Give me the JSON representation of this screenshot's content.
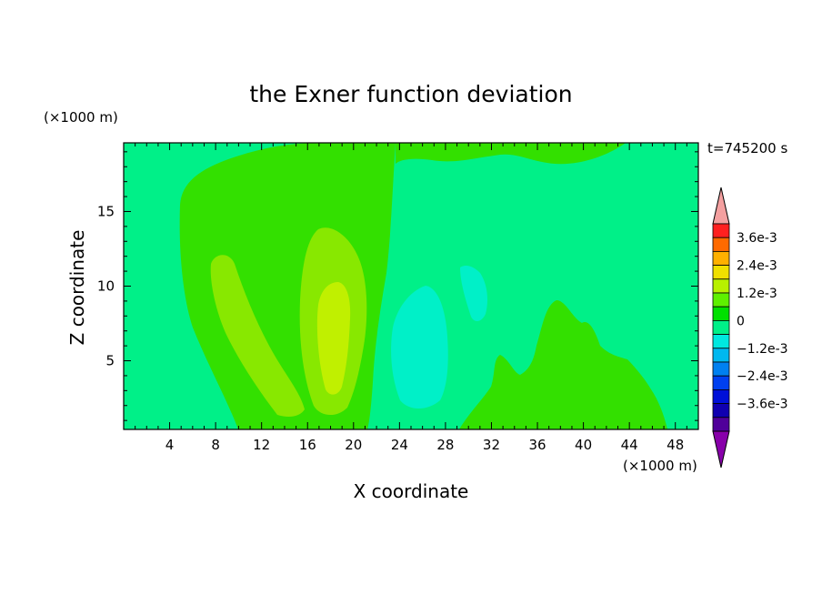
{
  "chart_data": {
    "type": "heatmap",
    "title": "the Exner function deviation",
    "xlabel": "X coordinate",
    "ylabel": "Z coordinate",
    "x_unit": "(×1000 m)",
    "z_unit": "(×1000 m)",
    "time_label": "t=745200 s",
    "xlim": [
      0,
      50
    ],
    "ylim": [
      0.4,
      19.6
    ],
    "x_ticks": [
      4,
      8,
      12,
      16,
      20,
      24,
      28,
      32,
      36,
      40,
      44,
      48
    ],
    "y_ticks": [
      5,
      10,
      15
    ],
    "colorbar": {
      "levels": [
        "3.6e-3",
        "2.4e-3",
        "1.2e-3",
        "0",
        "-1.2e-3",
        "-2.4e-3",
        "-3.6e-3"
      ],
      "colors": [
        "#ff2020",
        "#ff6a00",
        "#ffb000",
        "#f0e000",
        "#b8f000",
        "#5ef000",
        "#00e000",
        "#00f088",
        "#00e8e0",
        "#00b8f0",
        "#0080f0",
        "#0040f0",
        "#0010d8",
        "#1000b0",
        "#50009a"
      ],
      "over_color": "#f4a0a0",
      "under_color": "#8800aa"
    },
    "regions": [
      {
        "name": "background",
        "value": "-0.4e-3",
        "color": "#00f088"
      },
      {
        "name": "positive-plume-left",
        "value": "0.4e-3",
        "color": "#33e000"
      },
      {
        "name": "tongue-x10",
        "value": "0.8e-3",
        "color": "#88e800"
      },
      {
        "name": "tongue-x18",
        "value": "0.8e-3",
        "color": "#88e800"
      },
      {
        "name": "core-x18",
        "value": "1.2e-3",
        "color": "#c0f000"
      },
      {
        "name": "lower-right-positive",
        "value": "0.4e-3",
        "color": "#33e000"
      },
      {
        "name": "top-right-positive",
        "value": "0.4e-3",
        "color": "#33e000"
      },
      {
        "name": "negative-x26",
        "value": "-0.8e-3",
        "color": "#00f0c8"
      },
      {
        "name": "negative-x31",
        "value": "-0.8e-3",
        "color": "#00f0c8"
      }
    ]
  }
}
